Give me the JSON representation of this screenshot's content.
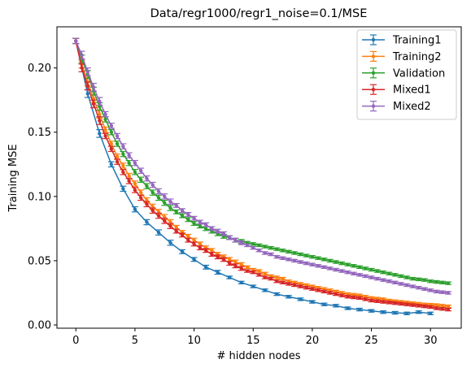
{
  "chart_data": {
    "type": "line",
    "title": "Data/regr1000/regr1_noise=0.1/MSE",
    "xlabel": "# hidden nodes",
    "ylabel": "Training MSE",
    "xlim": [
      -1.6,
      32.6
    ],
    "ylim": [
      -0.0025,
      0.232
    ],
    "xticks": [
      0,
      5,
      10,
      15,
      20,
      25,
      30
    ],
    "yticks": [
      0.0,
      0.05,
      0.1,
      0.15,
      0.2
    ],
    "ytick_labels": [
      "0.00",
      "0.05",
      "0.10",
      "0.15",
      "0.20"
    ],
    "grid": false,
    "legend_position": "top-right",
    "error_bars": true,
    "series": [
      {
        "name": "Training1",
        "color": "#1f77b4",
        "x": [
          0,
          1,
          2,
          3,
          4,
          5,
          6,
          7,
          8,
          9,
          10,
          11,
          12,
          13,
          14,
          15,
          16,
          17,
          18,
          19,
          20,
          21,
          22,
          23,
          24,
          25,
          26,
          27,
          28,
          29,
          30
        ],
        "values": [
          0.221,
          0.18,
          0.149,
          0.125,
          0.106,
          0.09,
          0.08,
          0.072,
          0.064,
          0.057,
          0.051,
          0.045,
          0.041,
          0.037,
          0.033,
          0.03,
          0.027,
          0.024,
          0.022,
          0.02,
          0.018,
          0.016,
          0.015,
          0.013,
          0.012,
          0.011,
          0.01,
          0.0095,
          0.009,
          0.01,
          0.009
        ],
        "errors": [
          0.002,
          0.003,
          0.003,
          0.002,
          0.002,
          0.002,
          0.002,
          0.002,
          0.002,
          0.0015,
          0.0015,
          0.0015,
          0.0015,
          0.001,
          0.001,
          0.001,
          0.001,
          0.001,
          0.001,
          0.001,
          0.001,
          0.001,
          0.001,
          0.001,
          0.001,
          0.001,
          0.001,
          0.001,
          0.001,
          0.001,
          0.001
        ]
      },
      {
        "name": "Training2",
        "color": "#ff7f0e",
        "x": [
          0,
          0.5,
          1,
          1.5,
          2,
          2.5,
          3,
          3.5,
          4,
          4.5,
          5,
          5.5,
          6,
          6.5,
          7,
          7.5,
          8,
          8.5,
          9,
          9.5,
          10,
          10.5,
          11,
          11.5,
          12,
          12.5,
          13,
          13.5,
          14,
          14.5,
          15,
          15.5,
          16,
          16.5,
          17,
          17.5,
          18,
          18.5,
          19,
          19.5,
          20,
          20.5,
          21,
          21.5,
          22,
          22.5,
          23,
          23.5,
          24,
          24.5,
          25,
          25.5,
          26,
          26.5,
          27,
          27.5,
          28,
          28.5,
          29,
          29.5,
          30,
          30.5,
          31,
          31.5
        ],
        "values": [
          0.221,
          0.203,
          0.189,
          0.176,
          0.164,
          0.152,
          0.141,
          0.131,
          0.124,
          0.116,
          0.11,
          0.103,
          0.097,
          0.092,
          0.088,
          0.084,
          0.08,
          0.076,
          0.072,
          0.069,
          0.066,
          0.063,
          0.06,
          0.058,
          0.055,
          0.053,
          0.051,
          0.049,
          0.047,
          0.045,
          0.043,
          0.042,
          0.04,
          0.038,
          0.037,
          0.036,
          0.034,
          0.033,
          0.032,
          0.031,
          0.03,
          0.029,
          0.028,
          0.027,
          0.026,
          0.025,
          0.024,
          0.0235,
          0.023,
          0.022,
          0.021,
          0.0205,
          0.02,
          0.019,
          0.0185,
          0.018,
          0.0175,
          0.017,
          0.0165,
          0.016,
          0.0158,
          0.0155,
          0.015,
          0.0145
        ],
        "errors": [
          0.002,
          0.003,
          0.003,
          0.003,
          0.003,
          0.002,
          0.002,
          0.002,
          0.002,
          0.002,
          0.002,
          0.002,
          0.002,
          0.002,
          0.002,
          0.002,
          0.002,
          0.0015,
          0.0015,
          0.0015,
          0.0015,
          0.0015,
          0.0015,
          0.0015,
          0.0015,
          0.0015,
          0.0015,
          0.0015,
          0.0015,
          0.001,
          0.001,
          0.001,
          0.001,
          0.001,
          0.001,
          0.001,
          0.001,
          0.001,
          0.001,
          0.001,
          0.001,
          0.001,
          0.001,
          0.001,
          0.001,
          0.001,
          0.001,
          0.001,
          0.001,
          0.001,
          0.001,
          0.001,
          0.001,
          0.001,
          0.001,
          0.001,
          0.001,
          0.001,
          0.001,
          0.001,
          0.001,
          0.001,
          0.001,
          0.001
        ]
      },
      {
        "name": "Validation",
        "color": "#2ca02c",
        "x": [
          0,
          0.5,
          1,
          1.5,
          2,
          2.5,
          3,
          3.5,
          4,
          4.5,
          5,
          5.5,
          6,
          6.5,
          7,
          7.5,
          8,
          8.5,
          9,
          9.5,
          10,
          10.5,
          11,
          11.5,
          12,
          12.5,
          13,
          13.5,
          14,
          14.5,
          15,
          15.5,
          16,
          16.5,
          17,
          17.5,
          18,
          18.5,
          19,
          19.5,
          20,
          20.5,
          21,
          21.5,
          22,
          22.5,
          23,
          23.5,
          24,
          24.5,
          25,
          25.5,
          26,
          26.5,
          27,
          27.5,
          28,
          28.5,
          29,
          29.5,
          30,
          30.5,
          31,
          31.5
        ],
        "values": [
          0.221,
          0.207,
          0.195,
          0.182,
          0.17,
          0.16,
          0.15,
          0.141,
          0.133,
          0.126,
          0.119,
          0.113,
          0.108,
          0.103,
          0.099,
          0.095,
          0.091,
          0.088,
          0.085,
          0.082,
          0.079,
          0.077,
          0.075,
          0.073,
          0.071,
          0.069,
          0.068,
          0.066,
          0.065,
          0.064,
          0.063,
          0.062,
          0.061,
          0.06,
          0.059,
          0.058,
          0.057,
          0.056,
          0.055,
          0.054,
          0.053,
          0.052,
          0.051,
          0.05,
          0.049,
          0.048,
          0.047,
          0.046,
          0.045,
          0.044,
          0.043,
          0.042,
          0.041,
          0.04,
          0.039,
          0.038,
          0.037,
          0.036,
          0.0355,
          0.035,
          0.034,
          0.0335,
          0.033,
          0.0325
        ],
        "errors": [
          0.002,
          0.003,
          0.003,
          0.003,
          0.003,
          0.002,
          0.002,
          0.002,
          0.002,
          0.002,
          0.002,
          0.002,
          0.002,
          0.002,
          0.002,
          0.002,
          0.002,
          0.0015,
          0.0015,
          0.0015,
          0.0015,
          0.0015,
          0.0015,
          0.0015,
          0.0015,
          0.0015,
          0.0015,
          0.0015,
          0.0015,
          0.001,
          0.001,
          0.001,
          0.001,
          0.001,
          0.001,
          0.001,
          0.001,
          0.001,
          0.001,
          0.001,
          0.001,
          0.001,
          0.001,
          0.001,
          0.001,
          0.001,
          0.001,
          0.001,
          0.001,
          0.001,
          0.001,
          0.001,
          0.001,
          0.001,
          0.001,
          0.001,
          0.001,
          0.001,
          0.001,
          0.001,
          0.001,
          0.001,
          0.001,
          0.001
        ]
      },
      {
        "name": "Mixed1",
        "color": "#d62728",
        "x": [
          0,
          0.5,
          1,
          1.5,
          2,
          2.5,
          3,
          3.5,
          4,
          4.5,
          5,
          5.5,
          6,
          6.5,
          7,
          7.5,
          8,
          8.5,
          9,
          9.5,
          10,
          10.5,
          11,
          11.5,
          12,
          12.5,
          13,
          13.5,
          14,
          14.5,
          15,
          15.5,
          16,
          16.5,
          17,
          17.5,
          18,
          18.5,
          19,
          19.5,
          20,
          20.5,
          21,
          21.5,
          22,
          22.5,
          23,
          23.5,
          24,
          24.5,
          25,
          25.5,
          26,
          26.5,
          27,
          27.5,
          28,
          28.5,
          29,
          29.5,
          30,
          30.5,
          31,
          31.5
        ],
        "values": [
          0.221,
          0.2,
          0.186,
          0.172,
          0.159,
          0.147,
          0.137,
          0.127,
          0.119,
          0.112,
          0.105,
          0.099,
          0.094,
          0.089,
          0.085,
          0.081,
          0.077,
          0.073,
          0.07,
          0.066,
          0.063,
          0.06,
          0.058,
          0.055,
          0.053,
          0.051,
          0.048,
          0.046,
          0.044,
          0.042,
          0.041,
          0.039,
          0.037,
          0.036,
          0.034,
          0.033,
          0.032,
          0.031,
          0.03,
          0.029,
          0.028,
          0.027,
          0.026,
          0.025,
          0.024,
          0.023,
          0.022,
          0.0215,
          0.021,
          0.02,
          0.019,
          0.0185,
          0.018,
          0.0175,
          0.017,
          0.0165,
          0.016,
          0.0155,
          0.015,
          0.0145,
          0.014,
          0.013,
          0.0125,
          0.012
        ],
        "errors": [
          0.002,
          0.003,
          0.003,
          0.003,
          0.003,
          0.002,
          0.002,
          0.002,
          0.002,
          0.002,
          0.002,
          0.002,
          0.002,
          0.002,
          0.002,
          0.002,
          0.002,
          0.0015,
          0.0015,
          0.0015,
          0.0015,
          0.0015,
          0.0015,
          0.0015,
          0.0015,
          0.0015,
          0.0015,
          0.0015,
          0.0015,
          0.001,
          0.001,
          0.001,
          0.001,
          0.001,
          0.001,
          0.001,
          0.001,
          0.001,
          0.001,
          0.001,
          0.001,
          0.001,
          0.001,
          0.001,
          0.001,
          0.001,
          0.001,
          0.001,
          0.001,
          0.001,
          0.001,
          0.001,
          0.001,
          0.001,
          0.001,
          0.001,
          0.001,
          0.001,
          0.001,
          0.001,
          0.001,
          0.001,
          0.001,
          0.001
        ]
      },
      {
        "name": "Mixed2",
        "color": "#9467bd",
        "x": [
          0,
          0.5,
          1,
          1.5,
          2,
          2.5,
          3,
          3.5,
          4,
          4.5,
          5,
          5.5,
          6,
          6.5,
          7,
          7.5,
          8,
          8.5,
          9,
          9.5,
          10,
          10.5,
          11,
          11.5,
          12,
          12.5,
          13,
          13.5,
          14,
          14.5,
          15,
          15.5,
          16,
          16.5,
          17,
          17.5,
          18,
          18.5,
          19,
          19.5,
          20,
          20.5,
          21,
          21.5,
          22,
          22.5,
          23,
          23.5,
          24,
          24.5,
          25,
          25.5,
          26,
          26.5,
          27,
          27.5,
          28,
          28.5,
          29,
          29.5,
          30,
          30.5,
          31,
          31.5
        ],
        "values": [
          0.221,
          0.21,
          0.197,
          0.185,
          0.174,
          0.164,
          0.155,
          0.147,
          0.139,
          0.132,
          0.126,
          0.12,
          0.114,
          0.109,
          0.104,
          0.1,
          0.096,
          0.093,
          0.089,
          0.086,
          0.083,
          0.08,
          0.078,
          0.075,
          0.073,
          0.071,
          0.068,
          0.066,
          0.064,
          0.062,
          0.06,
          0.058,
          0.056,
          0.055,
          0.053,
          0.052,
          0.051,
          0.05,
          0.049,
          0.048,
          0.047,
          0.046,
          0.045,
          0.044,
          0.043,
          0.042,
          0.041,
          0.04,
          0.039,
          0.038,
          0.037,
          0.036,
          0.035,
          0.034,
          0.033,
          0.032,
          0.031,
          0.03,
          0.029,
          0.028,
          0.027,
          0.026,
          0.0255,
          0.025
        ],
        "errors": [
          0.002,
          0.003,
          0.003,
          0.003,
          0.003,
          0.002,
          0.002,
          0.002,
          0.002,
          0.002,
          0.002,
          0.002,
          0.002,
          0.002,
          0.002,
          0.002,
          0.002,
          0.0015,
          0.0015,
          0.0015,
          0.0015,
          0.0015,
          0.0015,
          0.0015,
          0.0015,
          0.0015,
          0.0015,
          0.0015,
          0.0015,
          0.001,
          0.001,
          0.001,
          0.001,
          0.001,
          0.001,
          0.001,
          0.001,
          0.001,
          0.001,
          0.001,
          0.001,
          0.001,
          0.001,
          0.001,
          0.001,
          0.001,
          0.001,
          0.001,
          0.001,
          0.001,
          0.001,
          0.001,
          0.001,
          0.001,
          0.001,
          0.001,
          0.001,
          0.001,
          0.001,
          0.001,
          0.001,
          0.001,
          0.001,
          0.001
        ]
      }
    ]
  }
}
